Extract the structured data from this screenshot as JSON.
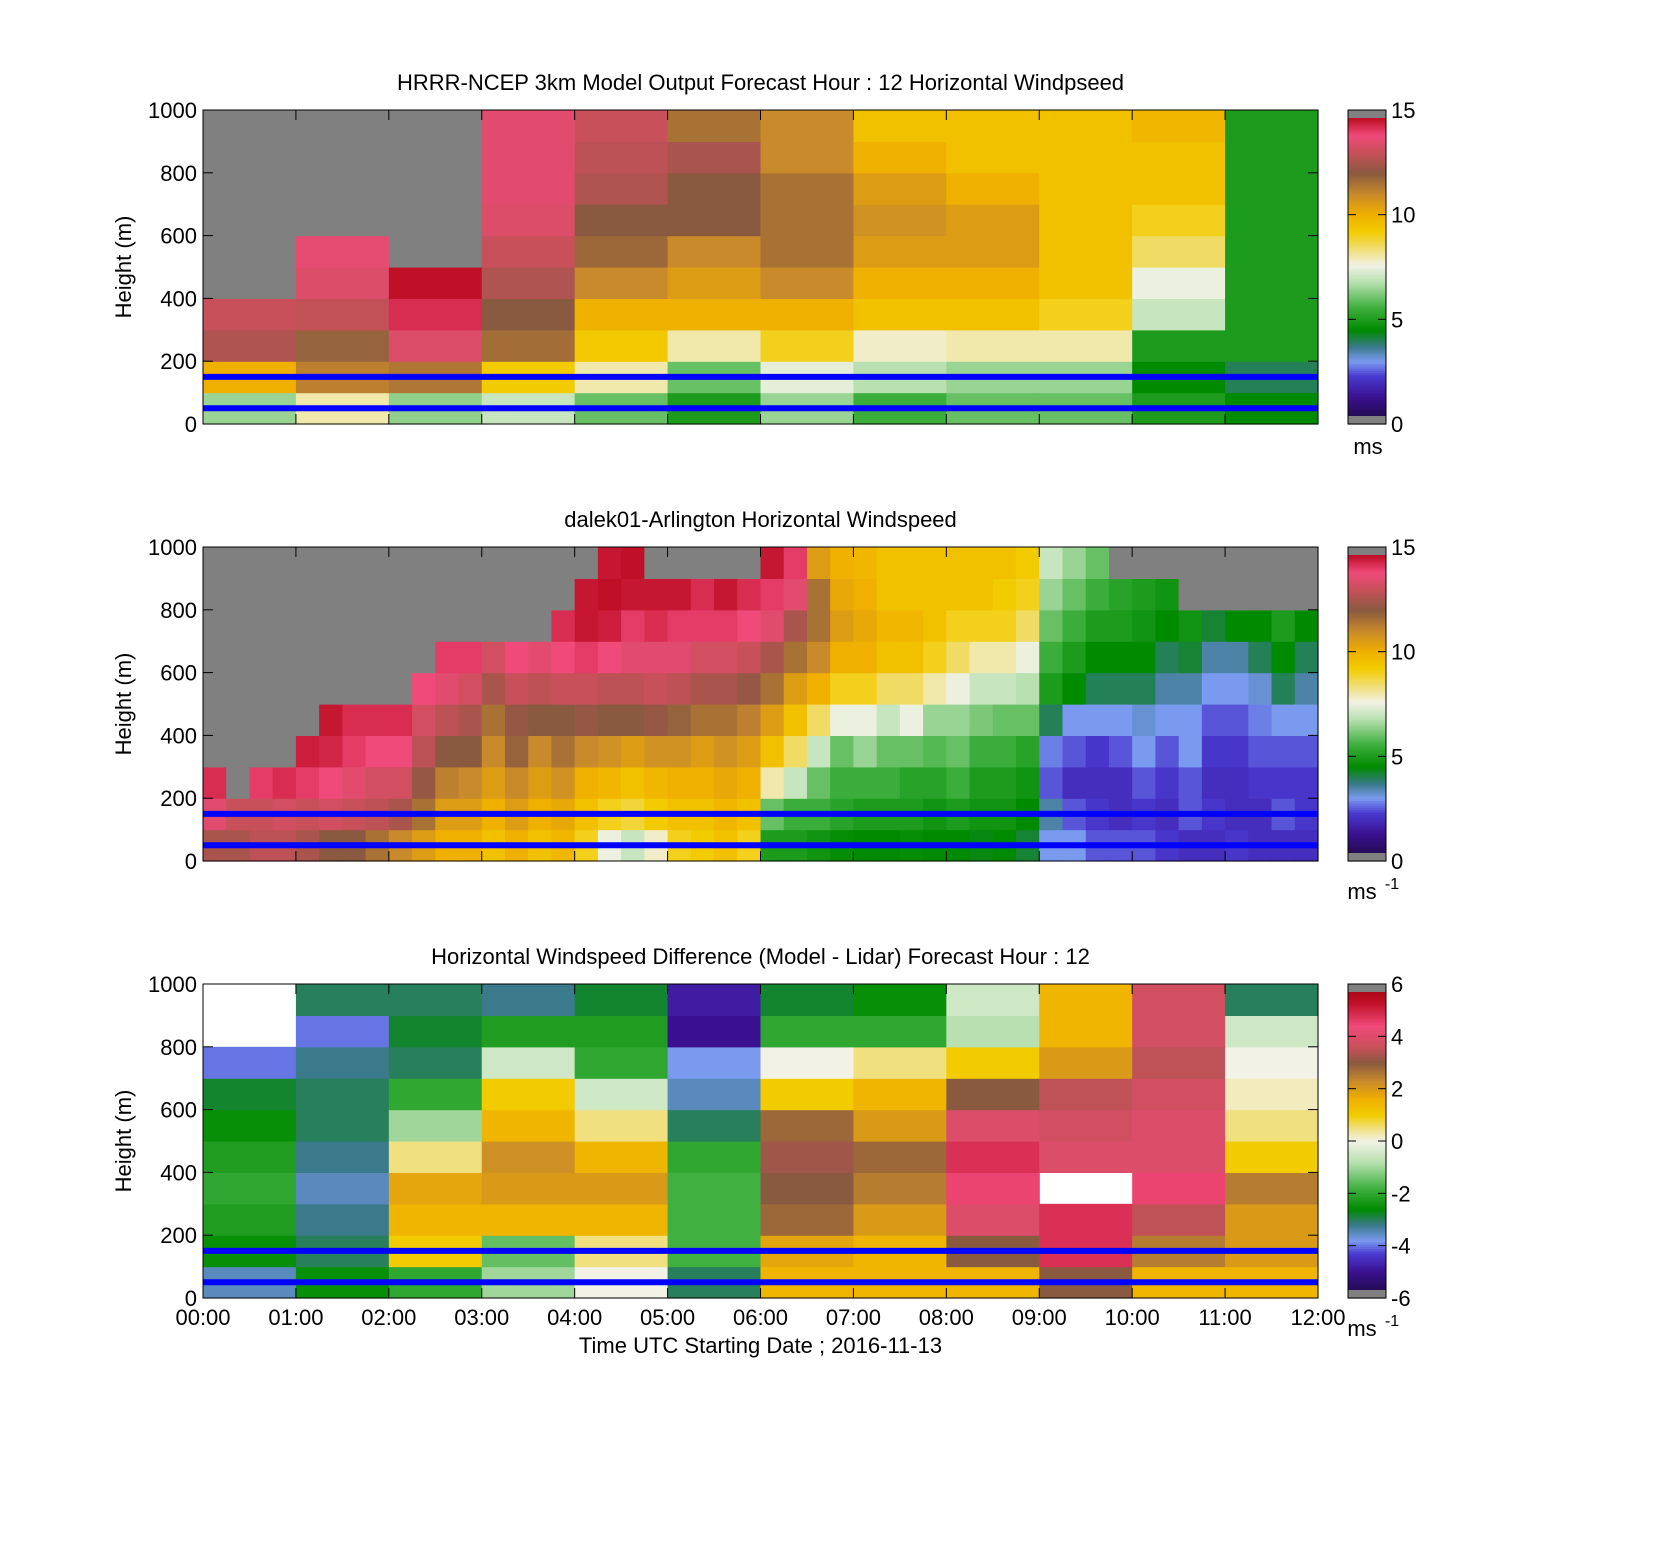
{
  "chart_data": [
    {
      "type": "heatmap",
      "title": "HRRR-NCEP 3km Model Output   Forecast Hour : 12 Horizontal Windpseed",
      "ylabel": "Height (m)",
      "xlabel": "",
      "xlim": [
        "00:00",
        "12:00"
      ],
      "ylim": [
        0,
        1000
      ],
      "y_ticks": [
        "0",
        "200",
        "400",
        "600",
        "800",
        "1000"
      ],
      "colorbar": {
        "min": 0,
        "max": 15,
        "ticks": [
          "0",
          "5",
          "10",
          "15"
        ],
        "unit": "ms",
        "unit_sup": ""
      },
      "x_resolution_hours": 1,
      "y_step_m": 100,
      "missing_color": "#808080",
      "highlight_heights_m": [
        50,
        150
      ],
      "highlight_color": "#0000ff",
      "grid": [
        [
          6.5,
          10.0,
          12.6,
          13.0,
          "",
          "",
          "",
          "",
          "",
          ""
        ],
        [
          8.0,
          11.2,
          11.8,
          12.9,
          13.4,
          13.6,
          "",
          "",
          "",
          ""
        ],
        [
          6.4,
          11.4,
          13.4,
          14.2,
          14.6,
          "",
          "",
          "",
          "",
          ""
        ],
        [
          7.0,
          9.2,
          11.6,
          12.0,
          12.6,
          13.0,
          13.4,
          13.5,
          13.5,
          13.5
        ],
        [
          6.0,
          8.0,
          9.3,
          10.0,
          11.0,
          11.7,
          12.0,
          12.6,
          12.8,
          13.0
        ],
        [
          5.0,
          6.0,
          8.0,
          10.0,
          10.5,
          11.0,
          12.0,
          12.0,
          12.5,
          11.5
        ],
        [
          6.5,
          7.4,
          9.0,
          10.0,
          11.0,
          11.5,
          11.5,
          11.5,
          11.0,
          11.0
        ],
        [
          5.5,
          6.8,
          7.8,
          9.5,
          10.0,
          10.5,
          10.8,
          10.5,
          10.0,
          9.5
        ],
        [
          6.0,
          6.5,
          8.0,
          9.5,
          10.0,
          10.5,
          10.5,
          10.0,
          9.5,
          9.5
        ],
        [
          6.0,
          6.5,
          8.0,
          9.0,
          9.5,
          9.5,
          9.5,
          9.5,
          9.5,
          9.5
        ],
        [
          5.0,
          4.5,
          5.0,
          7.0,
          7.5,
          8.5,
          9.0,
          9.5,
          9.5,
          9.8
        ],
        [
          4.5,
          4.0,
          5.0,
          5.0,
          5.0,
          5.0,
          5.0,
          5.0,
          5.0,
          5.0
        ]
      ]
    },
    {
      "type": "heatmap",
      "title": "dalek01-Arlington  Horizontal Windspeed",
      "ylabel": "Height (m)",
      "xlabel": "",
      "xlim": [
        "00:00",
        "12:00"
      ],
      "ylim": [
        0,
        1000
      ],
      "y_ticks": [
        "0",
        "200",
        "400",
        "600",
        "800",
        "1000"
      ],
      "colorbar": {
        "min": 0,
        "max": 15,
        "ticks": [
          "0",
          "5",
          "10",
          "15"
        ],
        "unit": "ms",
        "unit_sup": "-1"
      },
      "x_resolution_hours": 0.25,
      "y_step_m": 100,
      "missing_color": "#808080",
      "highlight_heights_m": [
        50,
        150
      ],
      "highlight_color": "#0000ff",
      "grid": [
        [
          12.5,
          13.5,
          14.2,
          "",
          "",
          "",
          "",
          "",
          "",
          ""
        ],
        [
          12.5,
          13.0,
          "",
          "",
          "",
          "",
          "",
          "",
          "",
          ""
        ],
        [
          12.8,
          13.0,
          14.0,
          "",
          "",
          "",
          "",
          "",
          "",
          ""
        ],
        [
          12.8,
          13.2,
          14.2,
          "",
          "",
          "",
          "",
          "",
          "",
          ""
        ],
        [
          12.5,
          13.0,
          14.0,
          14.4,
          "",
          "",
          "",
          "",
          "",
          ""
        ],
        [
          12.0,
          13.2,
          13.8,
          14.3,
          14.5,
          "",
          "",
          "",
          "",
          ""
        ],
        [
          12.0,
          13.0,
          13.5,
          14.0,
          14.2,
          "",
          "",
          "",
          "",
          ""
        ],
        [
          11.5,
          12.8,
          13.2,
          13.8,
          14.2,
          "",
          "",
          "",
          "",
          ""
        ],
        [
          11.0,
          12.5,
          13.2,
          13.8,
          14.2,
          "",
          "",
          "",
          "",
          ""
        ],
        [
          10.5,
          11.5,
          12.2,
          12.8,
          13.2,
          13.8,
          "",
          "",
          "",
          ""
        ],
        [
          10.0,
          10.5,
          11.2,
          12.0,
          12.8,
          13.5,
          14.0,
          "",
          "",
          ""
        ],
        [
          10.0,
          10.5,
          11.0,
          12.0,
          12.5,
          13.2,
          14.0,
          "",
          "",
          ""
        ],
        [
          9.5,
          10.0,
          10.5,
          11.0,
          11.5,
          12.5,
          13.2,
          "",
          "",
          ""
        ],
        [
          10.0,
          10.5,
          11.0,
          11.8,
          12.2,
          13.0,
          13.8,
          "",
          "",
          ""
        ],
        [
          9.5,
          10.0,
          10.5,
          11.0,
          12.0,
          12.8,
          13.5,
          "",
          "",
          ""
        ],
        [
          9.8,
          10.2,
          10.8,
          11.5,
          12.0,
          13.0,
          13.8,
          14.2,
          "",
          ""
        ],
        [
          9.0,
          9.5,
          10.0,
          11.0,
          12.2,
          13.0,
          14.0,
          14.5,
          14.5,
          ""
        ],
        [
          7.5,
          9.0,
          9.8,
          10.8,
          12.0,
          12.8,
          13.8,
          14.4,
          14.6,
          14.5
        ],
        [
          7.0,
          8.8,
          9.5,
          10.5,
          12.0,
          12.8,
          13.5,
          14.0,
          14.5,
          14.6
        ],
        [
          7.8,
          9.2,
          9.8,
          10.8,
          12.2,
          13.0,
          13.5,
          14.2,
          14.5,
          ""
        ],
        [
          9.0,
          9.5,
          10.0,
          10.8,
          11.8,
          12.8,
          13.5,
          14.0,
          14.5,
          ""
        ],
        [
          9.2,
          9.5,
          10.0,
          10.5,
          11.5,
          12.5,
          13.2,
          14.0,
          14.2,
          ""
        ],
        [
          9.5,
          9.8,
          10.2,
          10.8,
          11.5,
          12.5,
          13.2,
          14.0,
          14.5,
          ""
        ],
        [
          9.0,
          9.5,
          10.0,
          10.5,
          11.2,
          12.2,
          13.0,
          13.8,
          14.2,
          ""
        ],
        [
          5.0,
          6.0,
          8.0,
          9.5,
          10.5,
          11.5,
          12.5,
          13.5,
          14.0,
          14.5
        ],
        [
          5.0,
          5.5,
          7.0,
          8.5,
          9.5,
          10.5,
          11.5,
          12.5,
          13.5,
          14.0
        ],
        [
          4.8,
          5.5,
          6.0,
          7.0,
          8.5,
          10.0,
          11.0,
          11.5,
          11.5,
          10.5
        ],
        [
          4.6,
          5.2,
          5.5,
          6.0,
          7.5,
          9.0,
          10.0,
          10.5,
          10.2,
          10.0
        ],
        [
          4.5,
          5.0,
          5.5,
          6.5,
          7.5,
          9.0,
          10.0,
          10.2,
          10.0,
          9.8
        ],
        [
          4.5,
          5.0,
          5.5,
          6.0,
          7.0,
          8.5,
          9.5,
          9.8,
          9.5,
          9.5
        ],
        [
          4.6,
          5.0,
          5.2,
          6.0,
          7.5,
          8.5,
          9.5,
          9.8,
          9.5,
          9.5
        ],
        [
          4.5,
          4.8,
          5.2,
          5.8,
          6.5,
          8.0,
          9.0,
          9.5,
          9.5,
          9.5
        ],
        [
          4.5,
          5.0,
          5.5,
          6.0,
          6.5,
          7.5,
          8.5,
          9.0,
          9.5,
          9.5
        ],
        [
          4.4,
          4.8,
          5.0,
          5.5,
          6.2,
          7.0,
          8.0,
          9.0,
          9.5,
          9.5
        ],
        [
          4.5,
          4.8,
          5.0,
          5.5,
          6.0,
          7.0,
          8.0,
          9.0,
          9.2,
          9.5
        ],
        [
          4.2,
          4.5,
          4.8,
          5.2,
          6.0,
          6.8,
          7.5,
          8.5,
          9.0,
          9.2
        ],
        [
          3.0,
          3.5,
          2.5,
          2.8,
          4.0,
          5.0,
          5.5,
          6.0,
          6.5,
          7.0
        ],
        [
          3.0,
          2.5,
          2.0,
          2.5,
          3.0,
          4.5,
          5.0,
          5.5,
          6.0,
          6.5
        ],
        [
          2.5,
          2.2,
          2.0,
          2.2,
          3.0,
          4.0,
          4.5,
          5.0,
          5.5,
          6.0
        ],
        [
          2.5,
          2.0,
          2.0,
          2.5,
          3.0,
          4.0,
          4.5,
          5.0,
          5.2,
          ""
        ],
        [
          2.5,
          2.2,
          2.5,
          3.0,
          3.2,
          4.0,
          4.5,
          4.8,
          5.0,
          ""
        ],
        [
          2.2,
          2.0,
          2.2,
          2.5,
          3.0,
          3.5,
          4.0,
          4.5,
          4.8,
          ""
        ],
        [
          2.0,
          2.5,
          2.5,
          3.0,
          3.0,
          3.5,
          4.2,
          4.8,
          "",
          ""
        ],
        [
          2.0,
          2.2,
          2.0,
          2.2,
          2.5,
          3.0,
          3.5,
          4.2,
          "",
          ""
        ],
        [
          2.2,
          2.0,
          2.0,
          2.2,
          2.5,
          3.0,
          3.5,
          4.5,
          "",
          ""
        ],
        [
          2.0,
          2.0,
          2.2,
          2.5,
          2.8,
          3.2,
          4.0,
          4.5,
          "",
          ""
        ],
        [
          2.0,
          2.5,
          2.2,
          2.5,
          3.0,
          4.0,
          4.5,
          5.0,
          "",
          ""
        ],
        [
          2.0,
          2.2,
          2.2,
          2.5,
          3.0,
          3.5,
          4.0,
          4.5,
          "",
          ""
        ]
      ]
    },
    {
      "type": "heatmap",
      "title": "Horizontal Windspeed Difference (Model - Lidar) Forecast Hour : 12",
      "ylabel": "Height (m)",
      "xlabel": "Time UTC  Starting Date ; 2016-11-13",
      "xlim": [
        "00:00",
        "12:00"
      ],
      "ylim": [
        0,
        1000
      ],
      "x_ticks": [
        "00:00",
        "01:00",
        "02:00",
        "03:00",
        "04:00",
        "05:00",
        "06:00",
        "07:00",
        "08:00",
        "09:00",
        "10:00",
        "11:00",
        "12:00"
      ],
      "y_ticks": [
        "0",
        "200",
        "400",
        "600",
        "800",
        "1000"
      ],
      "colorbar": {
        "min": -6,
        "max": 6,
        "ticks": [
          "-6",
          "-4",
          "-2",
          "0",
          "2",
          "4",
          "6"
        ],
        "unit": "ms",
        "unit_sup": "-1"
      },
      "x_resolution_hours": 1,
      "y_step_m": 100,
      "missing_color": "#808080",
      "highlight_heights_m": [
        50,
        150
      ],
      "highlight_color": "#0000ff",
      "grid": [
        [
          -3.5,
          -2.5,
          -2.2,
          -2.0,
          -2.2,
          -2.5,
          -2.8,
          -4.0,
          "",
          ""
        ],
        [
          -2.5,
          -3.0,
          -3.2,
          -3.5,
          -3.2,
          -3.0,
          -3.0,
          -3.2,
          -4.0,
          -3.0
        ],
        [
          -2.0,
          1.0,
          1.5,
          1.8,
          0.5,
          -1.0,
          -2.0,
          -3.0,
          -2.8,
          -3.0
        ],
        [
          -1.0,
          -1.5,
          1.5,
          2.0,
          2.2,
          1.5,
          1.0,
          -0.5,
          -2.2,
          -3.2
        ],
        [
          0.0,
          0.5,
          1.5,
          2.0,
          1.5,
          0.5,
          -0.5,
          -2.0,
          -2.2,
          -2.8
        ],
        [
          -3.0,
          -1.8,
          -1.8,
          -1.8,
          -2.0,
          -3.0,
          -3.5,
          -3.8,
          -5.0,
          -4.8
        ],
        [
          1.5,
          1.8,
          2.8,
          3.0,
          3.2,
          2.8,
          1.0,
          0.0,
          -2.0,
          -2.8
        ],
        [
          1.5,
          1.5,
          2.0,
          2.5,
          2.8,
          2.0,
          1.5,
          0.5,
          -2.0,
          -2.5
        ],
        [
          1.5,
          3.0,
          4.0,
          4.5,
          4.8,
          4.0,
          3.0,
          1.0,
          -0.8,
          -0.5
        ],
        [
          3.0,
          4.8,
          4.8,
          "",
          4.0,
          3.8,
          3.5,
          2.0,
          1.5,
          1.5
        ],
        [
          1.5,
          2.5,
          3.5,
          4.5,
          4.0,
          4.0,
          3.8,
          3.5,
          3.8,
          3.8
        ],
        [
          1.5,
          2.0,
          2.0,
          2.5,
          1.0,
          0.5,
          0.2,
          0.0,
          -0.5,
          -3.0
        ]
      ]
    }
  ]
}
